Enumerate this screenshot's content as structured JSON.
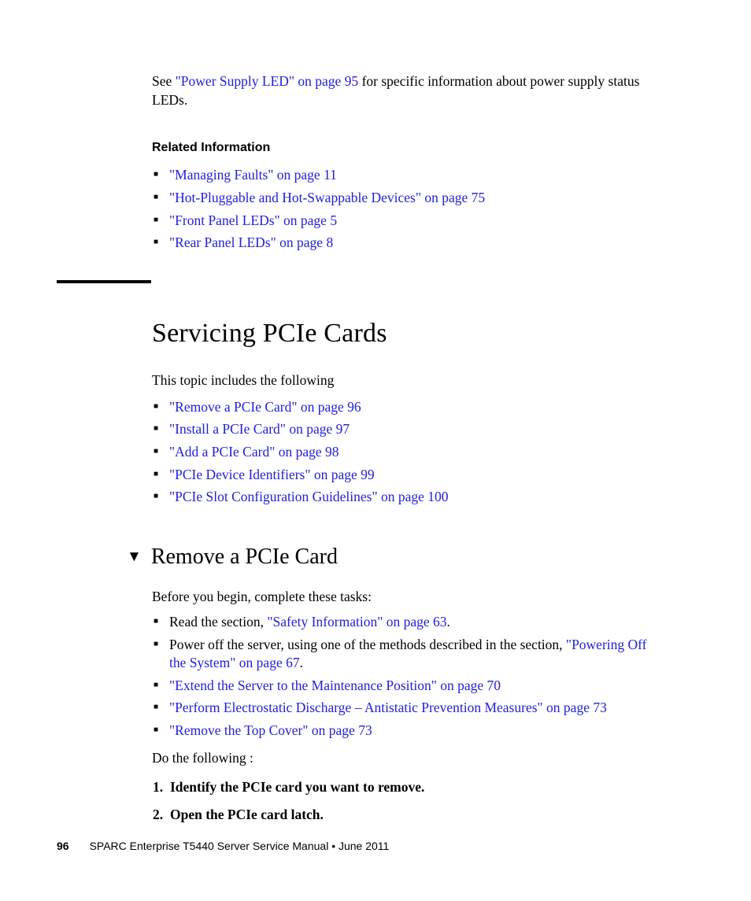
{
  "intro": {
    "prefix": "See ",
    "link": "\"Power Supply LED\" on page 95",
    "suffix": " for specific information about power supply status LEDs."
  },
  "related": {
    "heading": "Related Information",
    "items": [
      "\"Managing Faults\" on page 11",
      "\"Hot-Pluggable and Hot-Swappable Devices\" on page 75",
      "\"Front Panel LEDs\" on page 5",
      "\"Rear Panel LEDs\" on page 8"
    ]
  },
  "section": {
    "title": "Servicing PCIe Cards",
    "intro": "This topic includes the following",
    "links": [
      "\"Remove a PCIe Card\" on page 96",
      "\"Install a PCIe Card\" on page 97",
      "\"Add a PCIe Card\" on page 98",
      "\"PCIe Device Identifiers\" on page 99",
      "\"PCIe Slot Configuration Guidelines\" on page 100"
    ]
  },
  "subsection": {
    "title": "Remove a PCIe Card",
    "before": "Before you begin, complete these tasks:",
    "tasks": [
      {
        "prefix": "Read the section, ",
        "link": "\"Safety Information\" on page 63",
        "suffix": "."
      },
      {
        "prefix": "Power off the server, using one of the methods described in the section, ",
        "link": "\"Powering Off the System\" on page 67",
        "suffix": "."
      },
      {
        "prefix": "",
        "link": "\"Extend the Server to the Maintenance Position\" on page 70",
        "suffix": ""
      },
      {
        "prefix": "",
        "link": "\"Perform Electrostatic Discharge – Antistatic Prevention Measures\" on page 73",
        "suffix": ""
      },
      {
        "prefix": "",
        "link": "\"Remove the Top Cover\" on page 73",
        "suffix": ""
      }
    ],
    "do_following": "Do the following :",
    "steps": [
      {
        "num": "1.",
        "text": "Identify the PCIe card you want to remove."
      },
      {
        "num": "2.",
        "text": "Open the PCIe card latch."
      }
    ]
  },
  "footer": {
    "page": "96",
    "title": "SPARC Enterprise T5440 Server Service Manual  •  June 2011"
  }
}
